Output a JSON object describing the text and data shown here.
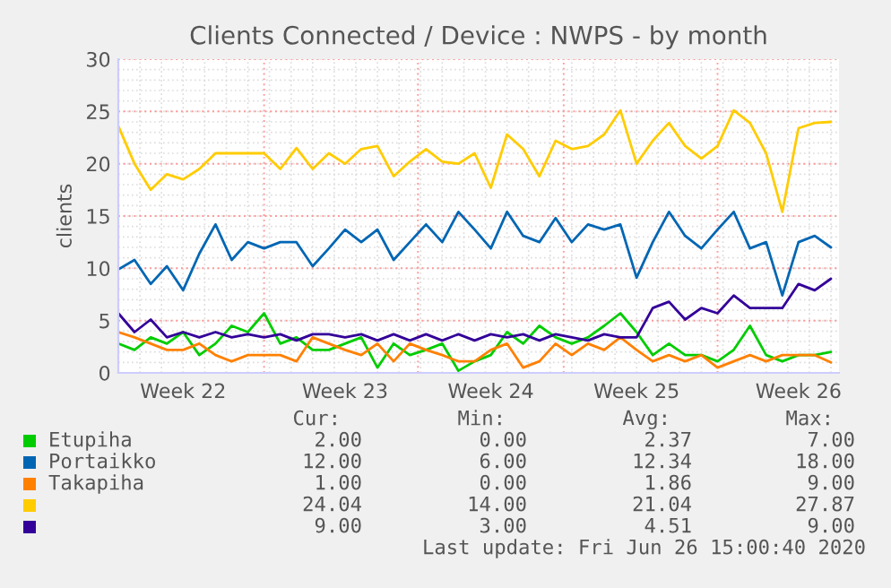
{
  "chart_data": {
    "type": "line",
    "title": "Clients Connected / Device : NWPS - by month",
    "ylabel": "clients",
    "categories": [
      null,
      null,
      null,
      null,
      "Week 22",
      null,
      null,
      null,
      null,
      null,
      null,
      null,
      null,
      null,
      "Week 23",
      null,
      null,
      null,
      null,
      null,
      null,
      null,
      null,
      "Week 24",
      null,
      null,
      null,
      null,
      null,
      null,
      null,
      null,
      "Week 25",
      null,
      null,
      null,
      null,
      null,
      null,
      null,
      null,
      null,
      "Week 26",
      null,
      null
    ],
    "ylim": [
      0,
      30
    ],
    "yticks": [
      0,
      5,
      10,
      15,
      20,
      25,
      30
    ],
    "grid": true,
    "legend": "bottom",
    "marker": "none",
    "line_style": "solid",
    "series": [
      {
        "name": "Etupiha",
        "color": "#00cc00",
        "values": [
          2.8,
          2.2,
          3.4,
          2.8,
          3.9,
          1.7,
          2.8,
          4.5,
          3.9,
          5.7,
          2.8,
          3.4,
          2.2,
          2.2,
          2.8,
          3.4,
          0.5,
          2.8,
          1.7,
          2.2,
          2.8,
          0.2,
          1.1,
          1.7,
          3.9,
          2.8,
          4.5,
          3.4,
          2.8,
          3.4,
          4.5,
          5.7,
          3.9,
          1.7,
          2.8,
          1.7,
          1.7,
          1.1,
          2.2,
          4.5,
          1.7,
          1.1,
          1.7,
          1.7,
          2
        ]
      },
      {
        "name": "Portaikko",
        "color": "#0066b3",
        "values": [
          9.9,
          10.8,
          8.5,
          10.2,
          7.9,
          11.4,
          14.2,
          10.8,
          12.5,
          11.9,
          12.5,
          12.5,
          10.2,
          11.9,
          13.7,
          12.5,
          13.7,
          10.8,
          12.5,
          14.2,
          12.5,
          15.4,
          13.7,
          11.9,
          15.4,
          13.1,
          12.5,
          14.8,
          12.5,
          14.2,
          13.7,
          14.2,
          9.1,
          12.5,
          15.4,
          13.1,
          11.9,
          13.7,
          15.4,
          11.9,
          12.5,
          7.4,
          12.5,
          13.1,
          12
        ]
      },
      {
        "name": "Takapiha",
        "color": "#ff8000",
        "values": [
          3.9,
          3.4,
          2.8,
          2.2,
          2.2,
          2.8,
          1.7,
          1.1,
          1.7,
          1.7,
          1.7,
          1.1,
          3.4,
          2.8,
          2.2,
          1.7,
          2.8,
          1.1,
          2.8,
          2.2,
          1.7,
          1.1,
          1.1,
          2.2,
          2.8,
          0.5,
          1.1,
          2.8,
          1.7,
          2.8,
          2.2,
          3.4,
          2.2,
          1.1,
          1.7,
          1.1,
          1.7,
          0.5,
          1.1,
          1.7,
          1.1,
          1.7,
          1.7,
          1.7,
          1
        ]
      },
      {
        "color": "#ffcc00",
        "values": [
          23.6,
          20,
          17.5,
          19,
          18.5,
          19.5,
          21,
          21,
          21,
          21,
          19.5,
          21.5,
          19.5,
          21,
          20,
          21.4,
          21.7,
          18.8,
          20.2,
          21.4,
          20.2,
          20,
          21,
          17.7,
          22.8,
          21.4,
          18.8,
          22.2,
          21.4,
          21.7,
          22.8,
          25.1,
          20,
          22.2,
          23.9,
          21.7,
          20.5,
          21.7,
          25.1,
          23.9,
          21,
          15.4,
          23.4,
          23.9,
          24
        ]
      },
      {
        "color": "#330099",
        "values": [
          5.7,
          3.9,
          5.1,
          3.4,
          3.9,
          3.4,
          3.9,
          3.4,
          3.7,
          3.4,
          3.7,
          3.1,
          3.7,
          3.7,
          3.4,
          3.7,
          3.1,
          3.7,
          3.1,
          3.7,
          3.1,
          3.7,
          3.1,
          3.7,
          3.4,
          3.7,
          3.1,
          3.7,
          3.4,
          3.1,
          3.7,
          3.4,
          3.4,
          6.2,
          6.8,
          5.1,
          6.2,
          5.7,
          7.4,
          6.2,
          6.2,
          6.2,
          8.5,
          7.9,
          9
        ]
      }
    ],
    "annotations": [
      "Cur:",
      "Min:",
      "Avg:",
      "Max:",
      "2.00",
      "0.00",
      "2.37",
      "7.00",
      "12.00",
      "6.00",
      "12.34",
      "18.00",
      "1.00",
      "0.00",
      "1.86",
      "9.00",
      "24.04",
      "14.00",
      "21.04",
      "27.87",
      "9.00",
      "3.00",
      "4.51",
      "9.00",
      "Last update: Fri Jun 26 15:00:40 2020"
    ]
  }
}
